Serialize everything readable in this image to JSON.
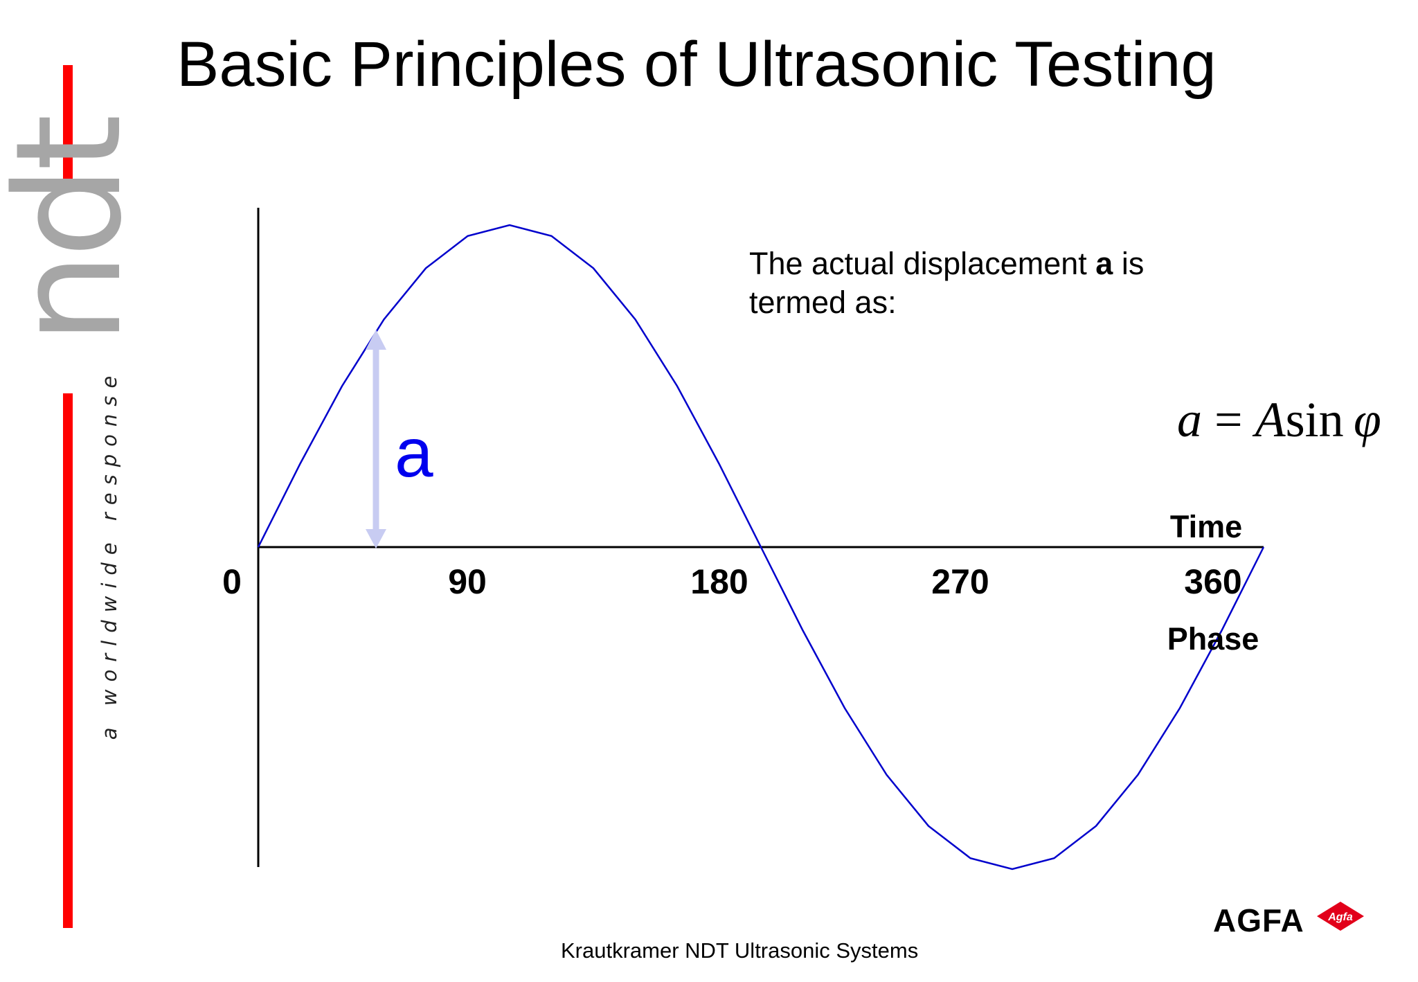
{
  "title": "Basic Principles of Ultrasonic Testing",
  "logo": {
    "word": "ndt",
    "tagline": "a worldwide response",
    "accent_color": "#ff0000",
    "word_color": "#a6a6a6"
  },
  "description": {
    "prefix": "The actual displacement ",
    "bold_term": "a",
    "suffix": " is",
    "line2": "termed as:"
  },
  "formula": {
    "lhs": "a",
    "eq": " = ",
    "amp": "A",
    "fn": "sin",
    "phase": "φ"
  },
  "diagram": {
    "wave_color": "#0000cc",
    "arrow_color": "#c8ccf2",
    "displacement_label": "a",
    "phase_ticks": [
      "0",
      "90",
      "180",
      "270",
      "360"
    ],
    "time_label": "Time",
    "phase_label": "Phase"
  },
  "footer": "Krautkramer NDT Ultrasonic Systems",
  "brand": {
    "name": "AGFA",
    "mark_text": "Agfa",
    "mark_color": "#e2001a"
  }
}
